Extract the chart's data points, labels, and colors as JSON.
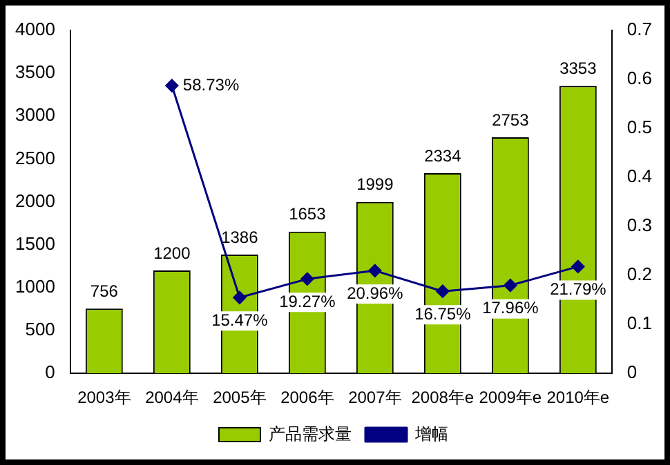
{
  "chart_data": {
    "type": "bar",
    "categories": [
      "2003年",
      "2004年",
      "2005年",
      "2006年",
      "2007年",
      "2008年e",
      "2009年e",
      "2010年e"
    ],
    "series": [
      {
        "name": "产品需求量",
        "color": "#99cc00",
        "values": [
          756,
          1200,
          1386,
          1653,
          1999,
          2334,
          2753,
          3353
        ],
        "value_labels": [
          "756",
          "1200",
          "1386",
          "1653",
          "1999",
          "2334",
          "2753",
          "3353"
        ]
      },
      {
        "name": "增幅",
        "type": "line",
        "axis": "y2",
        "color": "#000080",
        "values": [
          null,
          0.5873,
          0.1547,
          0.1927,
          0.2096,
          0.1675,
          0.1796,
          0.2179
        ],
        "value_labels": [
          null,
          "58.73%",
          "15.47%",
          "19.27%",
          "20.96%",
          "16.75%",
          "17.96%",
          "21.79%"
        ]
      }
    ],
    "ylim": [
      0,
      4000
    ],
    "yticks": [
      0,
      500,
      1000,
      1500,
      2000,
      2500,
      3000,
      3500,
      4000
    ],
    "y2lim": [
      0,
      0.7
    ],
    "y2ticks": [
      0,
      0.1,
      0.2,
      0.3,
      0.4,
      0.5,
      0.6,
      0.7
    ],
    "legend": "bottom",
    "marker": "diamond",
    "grid": false
  }
}
